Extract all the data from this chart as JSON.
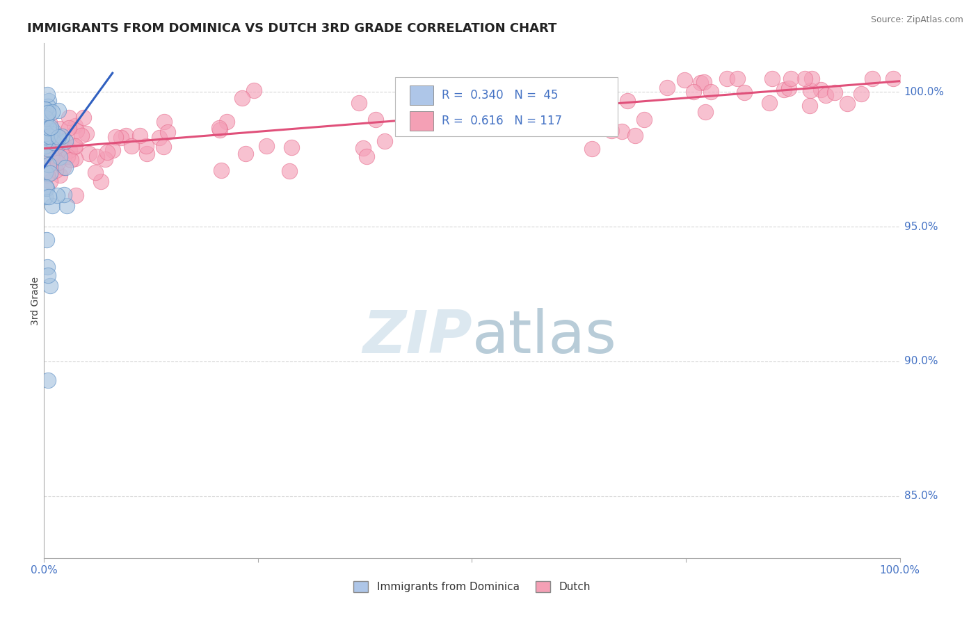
{
  "title": "IMMIGRANTS FROM DOMINICA VS DUTCH 3RD GRADE CORRELATION CHART",
  "source": "Source: ZipAtlas.com",
  "ylabel": "3rd Grade",
  "y_tick_labels": [
    "100.0%",
    "95.0%",
    "90.0%",
    "85.0%"
  ],
  "y_tick_values": [
    1.0,
    0.95,
    0.9,
    0.85
  ],
  "x_range": [
    0.0,
    1.0
  ],
  "y_range": [
    0.827,
    1.018
  ],
  "blue_color": "#a8c4e0",
  "pink_color": "#f4a0b8",
  "blue_edge": "#5b8ec5",
  "pink_edge": "#e87090",
  "blue_trend_color": "#3060c0",
  "pink_trend_color": "#e0507a",
  "watermark_color": "#dce8f0",
  "background_color": "#ffffff",
  "grid_color": "#cccccc",
  "title_color": "#222222",
  "axis_label_color": "#4472c4",
  "legend_R_color": "#4472c4",
  "legend_box_blue": "#aec6e8",
  "legend_box_pink": "#f4a0b5",
  "title_fontsize": 13,
  "axis_tick_fontsize": 11,
  "legend_fontsize": 12
}
